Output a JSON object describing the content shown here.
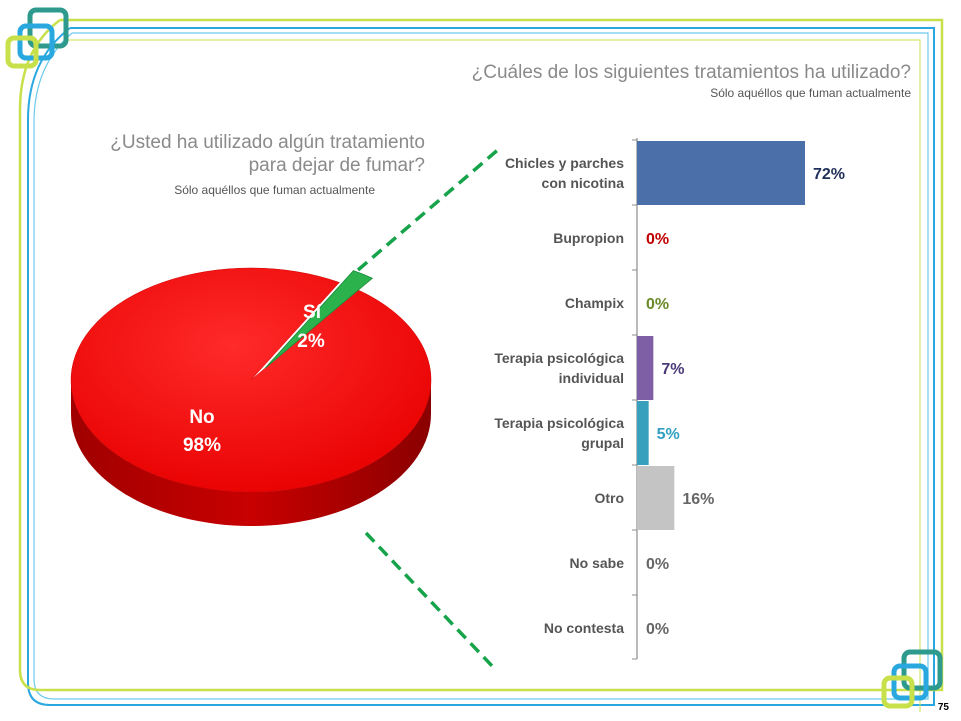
{
  "page": {
    "number": "75"
  },
  "left_chart": {
    "title_line1": "¿Usted ha utilizado algún tratamiento",
    "title_line2": "para dejar de fumar?",
    "subtitle": "Sólo aquéllos que fuman actualmente"
  },
  "right_chart": {
    "title": "¿Cuáles de los siguientes tratamientos ha utilizado?",
    "subtitle": "Sólo aquéllos que fuman actualmente"
  },
  "colors": {
    "frame_blue": "#29a8e0",
    "frame_green": "#c8e04a",
    "pie_no": "#ee1111",
    "pie_si": "#2bb24c",
    "connector": "#16a34a"
  },
  "chart_data": [
    {
      "type": "pie",
      "slices": [
        {
          "label": "No",
          "value": 98,
          "value_label": "98%",
          "color": "#ee1111"
        },
        {
          "label": "Sí",
          "value": 2,
          "value_label": "2%",
          "color": "#2bb24c"
        }
      ]
    },
    {
      "type": "bar",
      "orientation": "horizontal",
      "xlim": [
        0,
        100
      ],
      "bars": [
        {
          "label_lines": [
            "Chicles y parches",
            "con nicotina"
          ],
          "value": 72,
          "value_label": "72%",
          "color": "#4a6fa9",
          "label_color": "#1f2f5a"
        },
        {
          "label_lines": [
            "Bupropion"
          ],
          "value": 0,
          "value_label": "0%",
          "color": "#c00000",
          "label_color": "#c00000"
        },
        {
          "label_lines": [
            "Champix"
          ],
          "value": 0,
          "value_label": "0%",
          "color": "#77933c",
          "label_color": "#6a8a2a"
        },
        {
          "label_lines": [
            "Terapia psicológica",
            "individual"
          ],
          "value": 7,
          "value_label": "7%",
          "color": "#7e5fa6",
          "label_color": "#4b3a78"
        },
        {
          "label_lines": [
            "Terapia psicológica",
            "grupal"
          ],
          "value": 5,
          "value_label": "5%",
          "color": "#37a0bc",
          "label_color": "#31a0c0"
        },
        {
          "label_lines": [
            "Otro"
          ],
          "value": 16,
          "value_label": "16%",
          "color": "#c4c4c4",
          "label_color": "#666666"
        },
        {
          "label_lines": [
            "No sabe"
          ],
          "value": 0,
          "value_label": "0%",
          "color": "#999999",
          "label_color": "#666666"
        },
        {
          "label_lines": [
            "No contesta"
          ],
          "value": 0,
          "value_label": "0%",
          "color": "#999999",
          "label_color": "#666666"
        }
      ]
    }
  ]
}
